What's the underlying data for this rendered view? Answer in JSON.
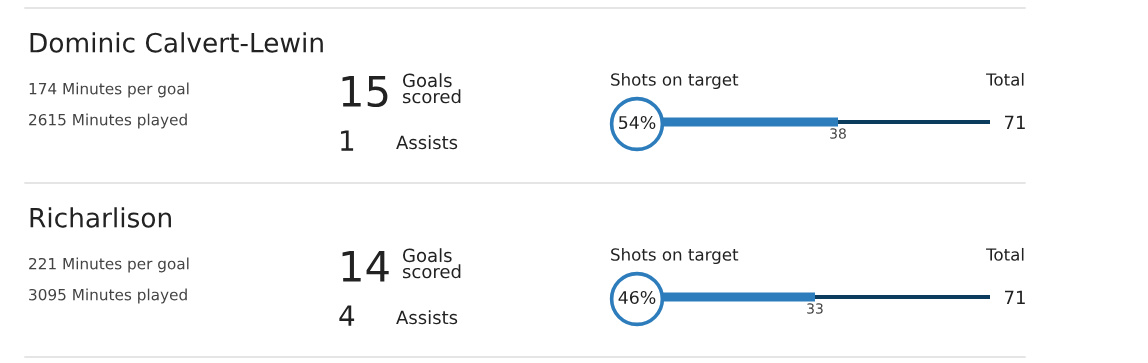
{
  "chart_data": [
    {
      "type": "other",
      "title": "Dominic Calvert-Lewin",
      "annotations": [
        "174 Minutes per goal",
        "2615 Minutes played",
        "15",
        "Goals\nscored",
        "1",
        "Assists"
      ]
    },
    {
      "type": "bar",
      "orientation": "horizontal",
      "stacked": true,
      "tick_labels": false,
      "categories": [
        null
      ],
      "series": [
        {
          "name": "Shots on target",
          "color": "#2d7dbd",
          "values": [
            38
          ],
          "value_labels": [
            "38"
          ]
        },
        {
          "name": "Total",
          "color": "#0b3c5d",
          "values": [
            33
          ]
        }
      ],
      "totals": [
        "71"
      ],
      "annotations": [
        "54%"
      ]
    },
    {
      "type": "other",
      "title": "Richarlison",
      "annotations": [
        "221 Minutes per goal",
        "3095 Minutes played",
        "14",
        "Goals\nscored",
        "4",
        "Assists"
      ]
    },
    {
      "type": "bar",
      "orientation": "horizontal",
      "stacked": true,
      "tick_labels": false,
      "categories": [
        null
      ],
      "series": [
        {
          "name": "Shots on target",
          "color": "#2d7dbd",
          "values": [
            33
          ],
          "value_labels": [
            "33"
          ]
        },
        {
          "name": "Total",
          "color": "#0b3c5d",
          "values": [
            38
          ]
        }
      ],
      "totals": [
        "71"
      ],
      "annotations": [
        "46%"
      ]
    }
  ]
}
